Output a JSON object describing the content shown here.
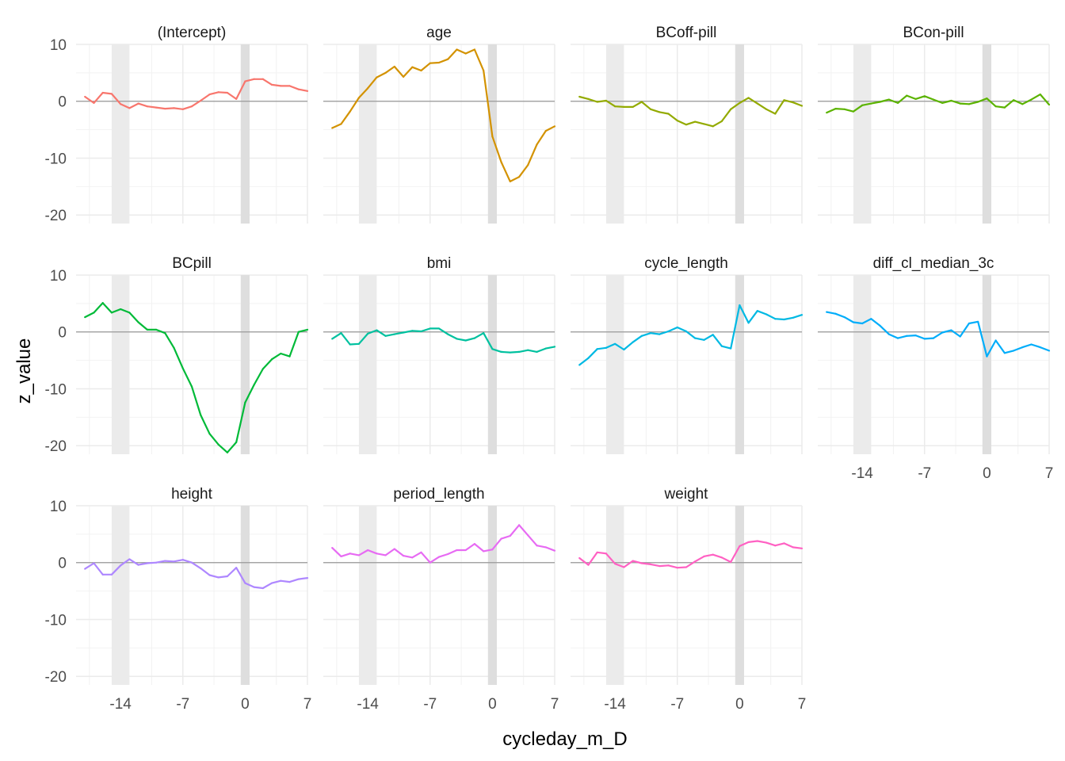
{
  "chart_data": {
    "type": "line",
    "layout": "facet_wrap",
    "xlabel": "cycleday_m_D",
    "ylabel": "z_value",
    "xlim": [
      -19,
      7
    ],
    "ylim": [
      -21.5,
      10
    ],
    "x_ticks": [
      -14,
      -7,
      0,
      7
    ],
    "x_tick_labels": [
      "-14",
      "-7",
      "0",
      "7"
    ],
    "y_ticks": [
      10,
      0,
      -10,
      -20
    ],
    "y_tick_labels": [
      "10",
      "0",
      "-10",
      "-20"
    ],
    "grid": true,
    "zero_line": true,
    "shaded_bands": [
      {
        "from": -15.0,
        "to": -13.0,
        "color": "#ebebeb"
      },
      {
        "from": -0.5,
        "to": 0.5,
        "color": "#dedede"
      }
    ],
    "x": [
      -18,
      -17,
      -16,
      -15,
      -14,
      -13,
      -12,
      -11,
      -10,
      -9,
      -8,
      -7,
      -6,
      -5,
      -4,
      -3,
      -2,
      -1,
      0,
      1,
      2,
      3,
      4,
      5,
      6,
      7
    ],
    "series": [
      {
        "name": "(Intercept)",
        "color": "#F8766D",
        "values": [
          0.8,
          -0.3,
          1.5,
          1.3,
          -0.5,
          -1.2,
          -0.4,
          -0.9,
          -1.1,
          -1.3,
          -1.2,
          -1.4,
          -0.9,
          0.1,
          1.2,
          1.6,
          1.5,
          0.4,
          3.5,
          3.9,
          3.9,
          2.9,
          2.7,
          2.7,
          2.1,
          1.8
        ]
      },
      {
        "name": "age",
        "color": "#D39200",
        "values": [
          -4.7,
          -4.0,
          -1.8,
          0.6,
          2.3,
          4.2,
          5.0,
          6.1,
          4.3,
          6.0,
          5.4,
          6.7,
          6.8,
          7.4,
          9.1,
          8.4,
          9.1,
          5.4,
          -6.2,
          -10.7,
          -14.1,
          -13.3,
          -11.2,
          -7.6,
          -5.2,
          -4.4
        ]
      },
      {
        "name": "BCoff-pill",
        "color": "#93AA00",
        "values": [
          0.8,
          0.4,
          -0.1,
          0.1,
          -0.9,
          -1.0,
          -1.0,
          -0.1,
          -1.4,
          -1.9,
          -2.2,
          -3.4,
          -4.1,
          -3.6,
          -4.0,
          -4.4,
          -3.5,
          -1.4,
          -0.3,
          0.6,
          -0.4,
          -1.4,
          -2.2,
          0.2,
          -0.2,
          -0.8
        ]
      },
      {
        "name": "BCon-pill",
        "color": "#5BB300",
        "values": [
          -2.0,
          -1.3,
          -1.4,
          -1.8,
          -0.7,
          -0.4,
          -0.1,
          0.3,
          -0.3,
          1.0,
          0.4,
          0.9,
          0.3,
          -0.3,
          0.1,
          -0.4,
          -0.5,
          -0.1,
          0.5,
          -0.9,
          -1.1,
          0.2,
          -0.5,
          0.3,
          1.2,
          -0.6
        ]
      },
      {
        "name": "BCpill",
        "color": "#00BA38",
        "values": [
          2.6,
          3.4,
          5.1,
          3.4,
          4.0,
          3.4,
          1.7,
          0.4,
          0.4,
          -0.2,
          -2.8,
          -6.4,
          -9.6,
          -14.6,
          -17.9,
          -19.8,
          -21.2,
          -19.4,
          -12.4,
          -9.3,
          -6.5,
          -4.8,
          -3.8,
          -4.3,
          0.0,
          0.4
        ]
      },
      {
        "name": "bmi",
        "color": "#00C19F",
        "values": [
          -1.2,
          -0.2,
          -2.2,
          -2.1,
          -0.3,
          0.3,
          -0.7,
          -0.4,
          -0.1,
          0.2,
          0.1,
          0.6,
          0.6,
          -0.4,
          -1.2,
          -1.5,
          -1.1,
          -0.2,
          -3.0,
          -3.5,
          -3.6,
          -3.5,
          -3.2,
          -3.5,
          -2.9,
          -2.6
        ]
      },
      {
        "name": "cycle_length",
        "color": "#00B9E3",
        "values": [
          -5.8,
          -4.6,
          -3.0,
          -2.8,
          -2.1,
          -3.1,
          -1.8,
          -0.7,
          -0.2,
          -0.4,
          0.1,
          0.8,
          0.1,
          -1.1,
          -1.4,
          -0.5,
          -2.5,
          -2.9,
          4.7,
          1.6,
          3.7,
          3.1,
          2.3,
          2.2,
          2.5,
          3.0
        ]
      },
      {
        "name": "diff_cl_median_3c",
        "color": "#00ADFA",
        "values": [
          3.5,
          3.2,
          2.6,
          1.7,
          1.5,
          2.3,
          1.1,
          -0.4,
          -1.1,
          -0.7,
          -0.6,
          -1.2,
          -1.1,
          -0.1,
          0.3,
          -0.8,
          1.5,
          1.8,
          -4.3,
          -1.5,
          -3.7,
          -3.3,
          -2.7,
          -2.2,
          -2.7,
          -3.3
        ]
      },
      {
        "name": "height",
        "color": "#AE87FF",
        "values": [
          -1.1,
          -0.1,
          -2.1,
          -2.1,
          -0.5,
          0.6,
          -0.4,
          -0.1,
          0.0,
          0.3,
          0.2,
          0.5,
          0.0,
          -1.0,
          -2.2,
          -2.6,
          -2.4,
          -0.9,
          -3.6,
          -4.3,
          -4.5,
          -3.6,
          -3.2,
          -3.4,
          -2.9,
          -2.7
        ]
      },
      {
        "name": "period_length",
        "color": "#E76BF3",
        "values": [
          2.6,
          1.1,
          1.6,
          1.3,
          2.2,
          1.6,
          1.3,
          2.4,
          1.2,
          0.9,
          1.8,
          0.0,
          1.0,
          1.5,
          2.2,
          2.2,
          3.3,
          2.0,
          2.3,
          4.2,
          4.7,
          6.6,
          4.8,
          3.0,
          2.7,
          2.1
        ]
      },
      {
        "name": "weight",
        "color": "#FF61C3",
        "values": [
          0.8,
          -0.4,
          1.8,
          1.6,
          -0.2,
          -0.8,
          0.3,
          -0.1,
          -0.3,
          -0.6,
          -0.5,
          -0.9,
          -0.8,
          0.2,
          1.1,
          1.4,
          0.9,
          0.1,
          2.9,
          3.6,
          3.8,
          3.5,
          3.0,
          3.4,
          2.7,
          2.5
        ]
      }
    ]
  }
}
